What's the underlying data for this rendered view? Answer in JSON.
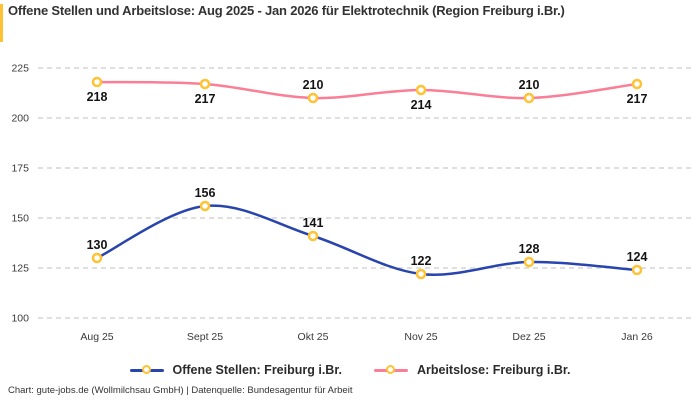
{
  "title": "Offene Stellen und Arbeitslose: Aug 2025 - Jan 2026 für Elektrotechnik (Region Freiburg i.Br.)",
  "footer": "Chart: gute-jobs.de (Wollmilchsau GmbH) | Datenquelle: Bundesagentur für Arbeit",
  "colors": {
    "accent_yellow": "#ffc233",
    "series_blue": "#2844ad",
    "series_pink": "#fa7e96",
    "grid": "#cccccc",
    "tick_text": "#3a3a3a",
    "label_text": "#141414"
  },
  "chart_data": {
    "type": "line",
    "title": "Offene Stellen und Arbeitslose: Aug 2025 - Jan 2026 für Elektrotechnik (Region Freiburg i.Br.)",
    "categories": [
      "Aug 25",
      "Sept 25",
      "Okt 25",
      "Nov 25",
      "Dez 25",
      "Jan 26"
    ],
    "series": [
      {
        "name": "Offene Stellen: Freiburg i.Br.",
        "color": "#2844ad",
        "values": [
          130,
          156,
          141,
          122,
          128,
          124
        ],
        "label_positions": [
          "above",
          "above",
          "above",
          "above",
          "above",
          "above"
        ]
      },
      {
        "name": "Arbeitslose: Freiburg i.Br.",
        "color": "#fa7e96",
        "values": [
          218,
          217,
          210,
          214,
          210,
          217
        ],
        "label_positions": [
          "below",
          "below",
          "above",
          "below",
          "above",
          "below"
        ]
      }
    ],
    "ylim": [
      100,
      225
    ],
    "yticks": [
      100,
      125,
      150,
      175,
      200,
      225
    ],
    "grid": "dashed-horizontal",
    "legend_position": "bottom",
    "marker": {
      "shape": "circle",
      "fill": "#ffffff",
      "stroke": "#ffc233"
    },
    "smooth": true
  },
  "legend": {
    "items": [
      {
        "label": "Offene Stellen: Freiburg i.Br."
      },
      {
        "label": "Arbeitslose: Freiburg i.Br."
      }
    ]
  }
}
